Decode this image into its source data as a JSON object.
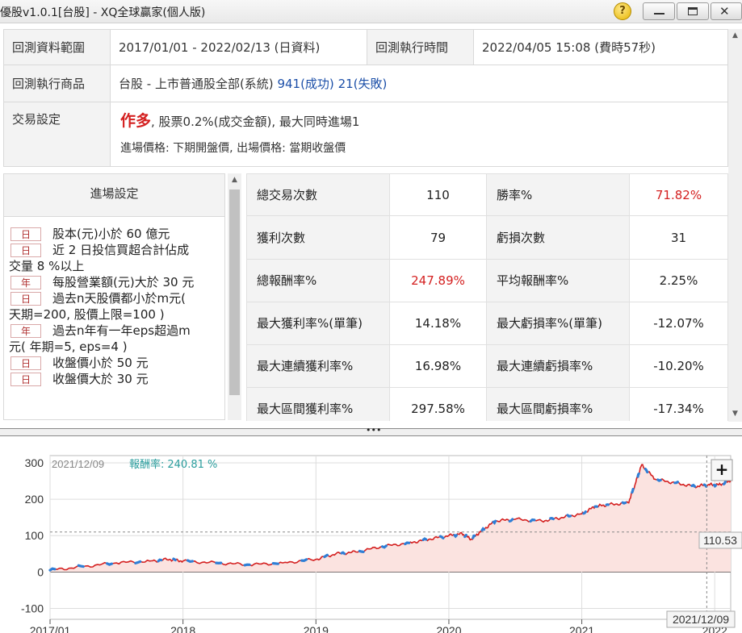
{
  "window": {
    "title": "優股v1.0.1[台股] - XQ全球贏家(個人版)",
    "help_label": "?"
  },
  "info": {
    "range_label": "回測資料範圍",
    "range_value": "2017/01/01 - 2022/02/13 (日資料)",
    "exec_time_label": "回測執行時間",
    "exec_time_value": "2022/04/05 15:08 (費時57秒)",
    "product_label": "回測執行商品",
    "product_value": "台股 - 上市普通股全部(系統)",
    "success_text": "941(成功)",
    "fail_text": "21(失敗)",
    "trade_label": "交易設定",
    "trade_direction": "作多",
    "trade_detail": ", 股票0.2%(成交金額), 最大同時進場1",
    "trade_price": "進場價格: 下期開盤價, 出場價格: 當期收盤價"
  },
  "entry": {
    "header": "進場設定",
    "conditions": [
      {
        "tag": "日",
        "text": "股本(元)小於 60 億元"
      },
      {
        "tag": "日",
        "text": "近 2 日投信買超合計佔成",
        "cont": "交量 8 %以上"
      },
      {
        "tag": "年",
        "text": "每股營業額(元)大於 30 元"
      },
      {
        "tag": "日",
        "text": "過去n天股價都小於m元(",
        "cont": "天期=200, 股價上限=100 )"
      },
      {
        "tag": "年",
        "text": "過去n年有一年eps超過m",
        "cont": "元( 年期=5, eps=4 )"
      },
      {
        "tag": "日",
        "text": "收盤價小於 50 元"
      },
      {
        "tag": "日",
        "text": "收盤價大於 30 元"
      }
    ]
  },
  "stats": {
    "rows": [
      {
        "l1": "總交易次數",
        "v1": "110",
        "l2": "勝率%",
        "v2": "71.82%",
        "c1": "",
        "c2": "red"
      },
      {
        "l1": "獲利次數",
        "v1": "79",
        "l2": "虧損次數",
        "v2": "31",
        "c1": "",
        "c2": ""
      },
      {
        "l1": "總報酬率%",
        "v1": "247.89%",
        "l2": "平均報酬率%",
        "v2": "2.25%",
        "c1": "red",
        "c2": ""
      },
      {
        "l1": "最大獲利率%(單筆)",
        "v1": "14.18%",
        "l2": "最大虧損率%(單筆)",
        "v2": "-12.07%",
        "c1": "",
        "c2": ""
      },
      {
        "l1": "最大連續獲利率%",
        "v1": "16.98%",
        "l2": "最大連續虧損率%",
        "v2": "-10.20%",
        "c1": "",
        "c2": ""
      },
      {
        "l1": "最大區間獲利率%",
        "v1": "297.58%",
        "l2": "最大區間虧損率%",
        "v2": "-17.34%",
        "c1": "",
        "c2": ""
      }
    ]
  },
  "chart_data": {
    "type": "line",
    "date_label": "2021/12/09",
    "return_label": "報酬率:",
    "return_value": "240.81 %",
    "cursor_value": "110.53",
    "cursor_date": "2021/12/09",
    "plus_label": "+",
    "splitter_label": "•••",
    "y_ticks": [
      "300",
      "200",
      "100",
      "0",
      "-100"
    ],
    "x_ticks": [
      "2017/01",
      "2018",
      "2019",
      "2020",
      "2021",
      "2022"
    ],
    "ylim": [
      -130,
      320
    ],
    "xlim": [
      2017.0,
      2022.12
    ],
    "x": [
      2017.0,
      2017.25,
      2017.5,
      2017.75,
      2017.9,
      2018.0,
      2018.25,
      2018.5,
      2018.75,
      2019.0,
      2019.15,
      2019.3,
      2019.5,
      2019.7,
      2019.85,
      2020.0,
      2020.1,
      2020.17,
      2020.25,
      2020.35,
      2020.5,
      2020.7,
      2020.85,
      2021.0,
      2021.1,
      2021.2,
      2021.35,
      2021.4,
      2021.45,
      2021.55,
      2021.7,
      2021.85,
      2021.95,
      2022.03,
      2022.12
    ],
    "values": [
      5,
      15,
      25,
      30,
      35,
      30,
      25,
      20,
      25,
      35,
      50,
      55,
      70,
      80,
      90,
      100,
      105,
      90,
      115,
      140,
      145,
      140,
      150,
      160,
      180,
      185,
      190,
      240,
      295,
      255,
      245,
      235,
      240,
      240,
      250
    ],
    "line_color": "#d42020",
    "trade_color": "#2f7fd6",
    "fill_color": "#fbe3e0"
  }
}
